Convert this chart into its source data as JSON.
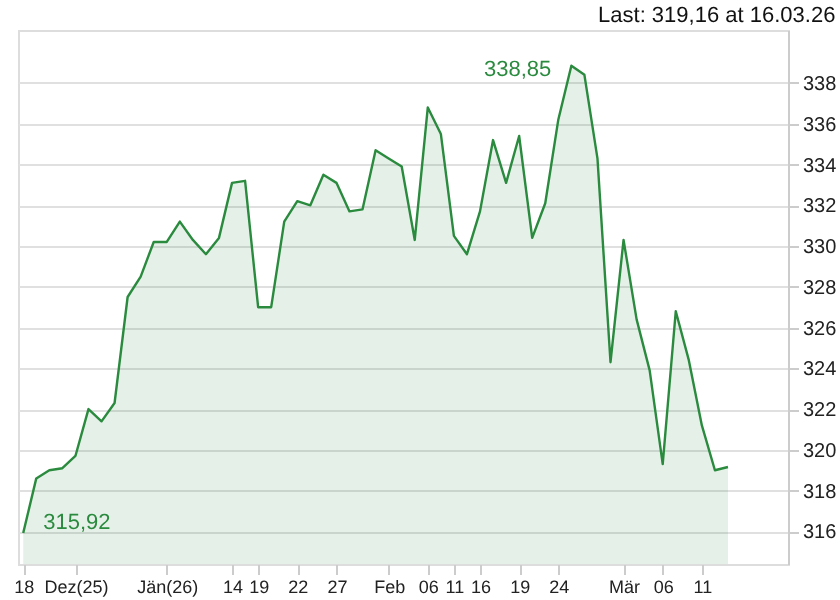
{
  "chart_data": {
    "type": "area",
    "title": "Last: 319,16 at 16.03.26",
    "categories": [
      "18",
      null,
      null,
      null,
      "Dez(25)",
      null,
      null,
      null,
      null,
      null,
      null,
      "Jän(26)",
      null,
      null,
      null,
      null,
      "14",
      null,
      "19",
      null,
      null,
      "22",
      null,
      null,
      "27",
      null,
      null,
      null,
      "Feb",
      null,
      null,
      "06",
      null,
      "11",
      null,
      "16",
      null,
      null,
      "19",
      null,
      null,
      "24",
      null,
      null,
      null,
      null,
      "Mär",
      null,
      null,
      "06",
      null,
      null,
      "11",
      null,
      null
    ],
    "series": [
      {
        "color": "#2a8a3e",
        "values": [
          315.92,
          318.6,
          319.0,
          319.1,
          319.7,
          322.0,
          321.4,
          322.3,
          327.5,
          328.5,
          330.2,
          330.2,
          331.2,
          330.3,
          329.6,
          330.4,
          333.1,
          333.2,
          327.0,
          327.0,
          331.2,
          332.2,
          332.0,
          333.5,
          333.1,
          331.7,
          331.8,
          334.7,
          334.3,
          333.9,
          330.3,
          336.8,
          335.5,
          330.5,
          329.6,
          331.7,
          335.2,
          333.1,
          335.4,
          330.4,
          332.1,
          336.2,
          338.85,
          338.4,
          334.3,
          324.3,
          330.3,
          326.4,
          323.9,
          319.3,
          326.8,
          324.4,
          321.2,
          319.0,
          319.16
        ]
      }
    ],
    "ylim": [
      314.4,
      340.6
    ],
    "yticks": [
      316,
      318,
      320,
      322,
      324,
      326,
      328,
      330,
      332,
      334,
      336,
      338
    ],
    "grid": "y",
    "annotations": [
      {
        "text": "315,92",
        "x": "18",
        "y": 315.92
      },
      "338,85"
    ]
  }
}
